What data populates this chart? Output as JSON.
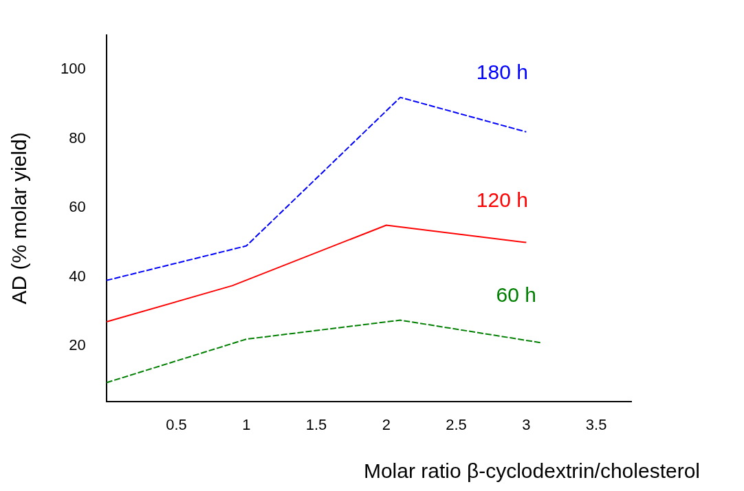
{
  "chart_data": {
    "type": "line",
    "xlabel": "Molar ratio β-cyclodextrin/cholesterol",
    "ylabel": "AD (% molar yield)",
    "xlim": [
      0,
      3.75
    ],
    "xticks": [
      0.5,
      1,
      1.5,
      2,
      2.5,
      3,
      3.5
    ],
    "ylim": [
      4,
      110
    ],
    "yticks": [
      20,
      40,
      60,
      80,
      100
    ],
    "grid": false,
    "legend": false,
    "marker": "none",
    "series": [
      {
        "name": "180 h",
        "color": "#0000ff",
        "line_style": "dashed",
        "x": [
          0,
          1,
          2.1,
          3
        ],
        "values": [
          39,
          49,
          92,
          82
        ]
      },
      {
        "name": "120 h",
        "color": "#ff0000",
        "line_style": "solid",
        "x": [
          0,
          0.9,
          2,
          3
        ],
        "values": [
          27,
          37.5,
          55,
          50
        ]
      },
      {
        "name": "60 h",
        "color": "#008000",
        "line_style": "dashed",
        "x": [
          0,
          1,
          2.1,
          3.1
        ],
        "values": [
          9.4,
          22,
          27.5,
          21
        ]
      }
    ]
  }
}
